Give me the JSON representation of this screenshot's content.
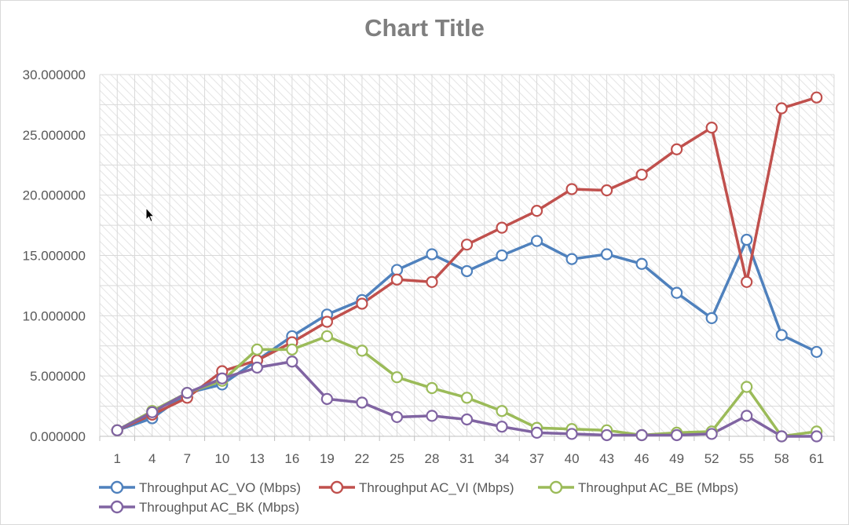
{
  "chart_data": {
    "type": "line",
    "title": "Chart Title",
    "xlabel": "",
    "ylabel": "",
    "x": [
      "1",
      "4",
      "7",
      "10",
      "13",
      "16",
      "19",
      "22",
      "25",
      "28",
      "31",
      "34",
      "37",
      "40",
      "43",
      "46",
      "49",
      "52",
      "55",
      "58",
      "61"
    ],
    "ylim": [
      0,
      30
    ],
    "y_ticks": [
      "0.000000",
      "5.000000",
      "10.000000",
      "15.000000",
      "20.000000",
      "25.000000",
      "30.000000"
    ],
    "grid": true,
    "legend_position": "bottom",
    "series": [
      {
        "name": "Throughput AC_VO (Mbps)",
        "color": "#4f81bd",
        "values": [
          0.5,
          1.5,
          3.6,
          4.3,
          6.3,
          8.3,
          10.1,
          11.3,
          13.8,
          15.1,
          13.7,
          15.0,
          16.2,
          14.7,
          15.1,
          14.3,
          11.9,
          9.8,
          16.3,
          8.4,
          7.0
        ]
      },
      {
        "name": "Throughput AC_VI (Mbps)",
        "color": "#c0504d",
        "values": [
          0.5,
          1.8,
          3.2,
          5.4,
          6.3,
          7.8,
          9.5,
          11.0,
          13.0,
          12.8,
          15.9,
          17.3,
          18.7,
          20.5,
          20.4,
          21.7,
          23.8,
          25.6,
          12.8,
          27.2,
          28.1
        ]
      },
      {
        "name": "Throughput AC_BE (Mbps)",
        "color": "#9bbb59",
        "values": [
          0.5,
          2.1,
          3.6,
          4.6,
          7.2,
          7.2,
          8.3,
          7.1,
          4.9,
          4.0,
          3.2,
          2.1,
          0.7,
          0.6,
          0.5,
          0.1,
          0.3,
          0.4,
          4.1,
          0.0,
          0.4
        ]
      },
      {
        "name": "Throughput AC_BK (Mbps)",
        "color": "#8064a2",
        "values": [
          0.5,
          2.0,
          3.6,
          4.8,
          5.7,
          6.2,
          3.1,
          2.8,
          1.6,
          1.7,
          1.4,
          0.8,
          0.3,
          0.2,
          0.1,
          0.1,
          0.1,
          0.2,
          1.7,
          0.0,
          0.0
        ]
      }
    ]
  }
}
